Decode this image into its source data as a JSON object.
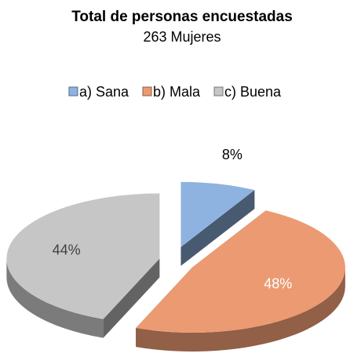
{
  "chart_data": {
    "type": "pie",
    "title": "Total de personas encuestadas",
    "subtitle": "263 Mujeres",
    "categories": [
      "a) Sana",
      "b) Mala",
      "c) Buena"
    ],
    "values": [
      8,
      48,
      44
    ],
    "value_labels": [
      "8%",
      "48%",
      "44%"
    ],
    "colors": [
      "#8fb3e0",
      "#ec9a72",
      "#c6c6c6"
    ],
    "legend": "top"
  }
}
